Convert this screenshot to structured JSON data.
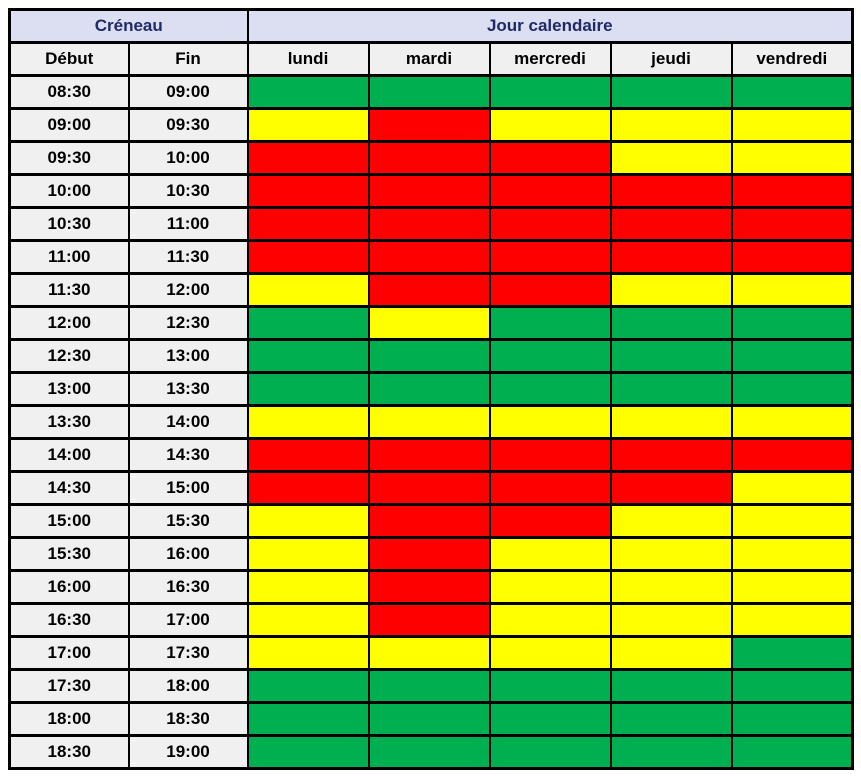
{
  "header": {
    "creneau": "Créneau",
    "jour_calendaire": "Jour calendaire",
    "debut": "Début",
    "fin": "Fin"
  },
  "chart_data": {
    "type": "heatmap",
    "x_label": "Jour calendaire",
    "y_label": "Créneau",
    "x_categories": [
      "lundi",
      "mardi",
      "mercredi",
      "jeudi",
      "vendredi"
    ],
    "y_columns": [
      "Début",
      "Fin"
    ],
    "color_map": {
      "green": "#00B050",
      "yellow": "#FFFF00",
      "red": "#FF0000"
    },
    "rows": [
      {
        "debut": "08:30",
        "fin": "09:00",
        "slots": [
          "green",
          "green",
          "green",
          "green",
          "green"
        ]
      },
      {
        "debut": "09:00",
        "fin": "09:30",
        "slots": [
          "yellow",
          "red",
          "yellow",
          "yellow",
          "yellow"
        ]
      },
      {
        "debut": "09:30",
        "fin": "10:00",
        "slots": [
          "red",
          "red",
          "red",
          "yellow",
          "yellow"
        ]
      },
      {
        "debut": "10:00",
        "fin": "10:30",
        "slots": [
          "red",
          "red",
          "red",
          "red",
          "red"
        ]
      },
      {
        "debut": "10:30",
        "fin": "11:00",
        "slots": [
          "red",
          "red",
          "red",
          "red",
          "red"
        ]
      },
      {
        "debut": "11:00",
        "fin": "11:30",
        "slots": [
          "red",
          "red",
          "red",
          "red",
          "red"
        ]
      },
      {
        "debut": "11:30",
        "fin": "12:00",
        "slots": [
          "yellow",
          "red",
          "red",
          "yellow",
          "yellow"
        ]
      },
      {
        "debut": "12:00",
        "fin": "12:30",
        "slots": [
          "green",
          "yellow",
          "green",
          "green",
          "green"
        ]
      },
      {
        "debut": "12:30",
        "fin": "13:00",
        "slots": [
          "green",
          "green",
          "green",
          "green",
          "green"
        ]
      },
      {
        "debut": "13:00",
        "fin": "13:30",
        "slots": [
          "green",
          "green",
          "green",
          "green",
          "green"
        ]
      },
      {
        "debut": "13:30",
        "fin": "14:00",
        "slots": [
          "yellow",
          "yellow",
          "yellow",
          "yellow",
          "yellow"
        ]
      },
      {
        "debut": "14:00",
        "fin": "14:30",
        "slots": [
          "red",
          "red",
          "red",
          "red",
          "red"
        ]
      },
      {
        "debut": "14:30",
        "fin": "15:00",
        "slots": [
          "red",
          "red",
          "red",
          "red",
          "yellow"
        ]
      },
      {
        "debut": "15:00",
        "fin": "15:30",
        "slots": [
          "yellow",
          "red",
          "red",
          "yellow",
          "yellow"
        ]
      },
      {
        "debut": "15:30",
        "fin": "16:00",
        "slots": [
          "yellow",
          "red",
          "yellow",
          "yellow",
          "yellow"
        ]
      },
      {
        "debut": "16:00",
        "fin": "16:30",
        "slots": [
          "yellow",
          "red",
          "yellow",
          "yellow",
          "yellow"
        ]
      },
      {
        "debut": "16:30",
        "fin": "17:00",
        "slots": [
          "yellow",
          "red",
          "yellow",
          "yellow",
          "yellow"
        ]
      },
      {
        "debut": "17:00",
        "fin": "17:30",
        "slots": [
          "yellow",
          "yellow",
          "yellow",
          "yellow",
          "green"
        ]
      },
      {
        "debut": "17:30",
        "fin": "18:00",
        "slots": [
          "green",
          "green",
          "green",
          "green",
          "green"
        ]
      },
      {
        "debut": "18:00",
        "fin": "18:30",
        "slots": [
          "green",
          "green",
          "green",
          "green",
          "green"
        ]
      },
      {
        "debut": "18:30",
        "fin": "19:00",
        "slots": [
          "green",
          "green",
          "green",
          "green",
          "green"
        ]
      }
    ]
  },
  "colors": {
    "header_bg": "#DCDEF1",
    "header_text": "#1F2A66",
    "subheader_bg": "#F0F0F0",
    "time_cell_bg": "#F0F0F0",
    "grid_border": "#000000",
    "page_bg": "#FFFFFF"
  }
}
